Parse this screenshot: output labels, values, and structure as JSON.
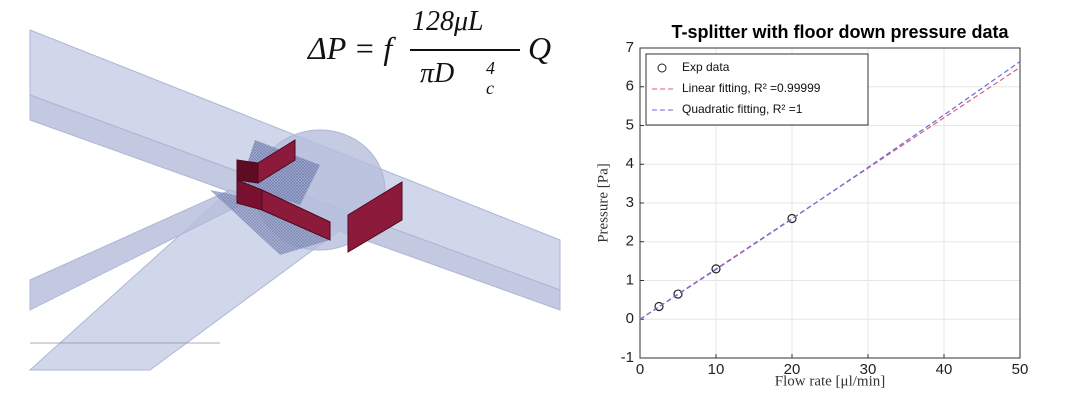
{
  "illustration": {
    "formula": {
      "lhs": "ΔP = f",
      "numerator": "128μL",
      "denominator": "πD",
      "subscript": "c",
      "superscript": "4",
      "tail": "Q"
    }
  },
  "chart_data": {
    "type": "line",
    "title": "T-splitter with floor down pressure data",
    "xlabel": "Flow rate [μl/min]",
    "ylabel": "Pressure [Pa]",
    "xlim": [
      0,
      50
    ],
    "ylim": [
      -1,
      7
    ],
    "xticks": [
      0,
      10,
      20,
      30,
      40,
      50
    ],
    "yticks": [
      -1,
      0,
      1,
      2,
      3,
      4,
      5,
      6,
      7
    ],
    "grid": true,
    "legend": "upper-left",
    "series": [
      {
        "name": "Exp data",
        "color": "#222222",
        "style": "marker",
        "x": [
          2.5,
          5,
          10,
          20
        ],
        "values": [
          0.33,
          0.65,
          1.3,
          2.6
        ]
      },
      {
        "name": "Linear fitting, R² =0.99999",
        "color": "#d9607a",
        "style": "dashed",
        "x": [
          0,
          50
        ],
        "values": [
          0,
          6.5
        ]
      },
      {
        "name": "Quadratic fitting, R² =1",
        "color": "#6a6adf",
        "style": "dashed",
        "x": [
          0,
          10,
          20,
          30,
          40,
          50
        ],
        "values": [
          0,
          1.282,
          2.588,
          3.918,
          5.272,
          6.65
        ]
      }
    ]
  }
}
